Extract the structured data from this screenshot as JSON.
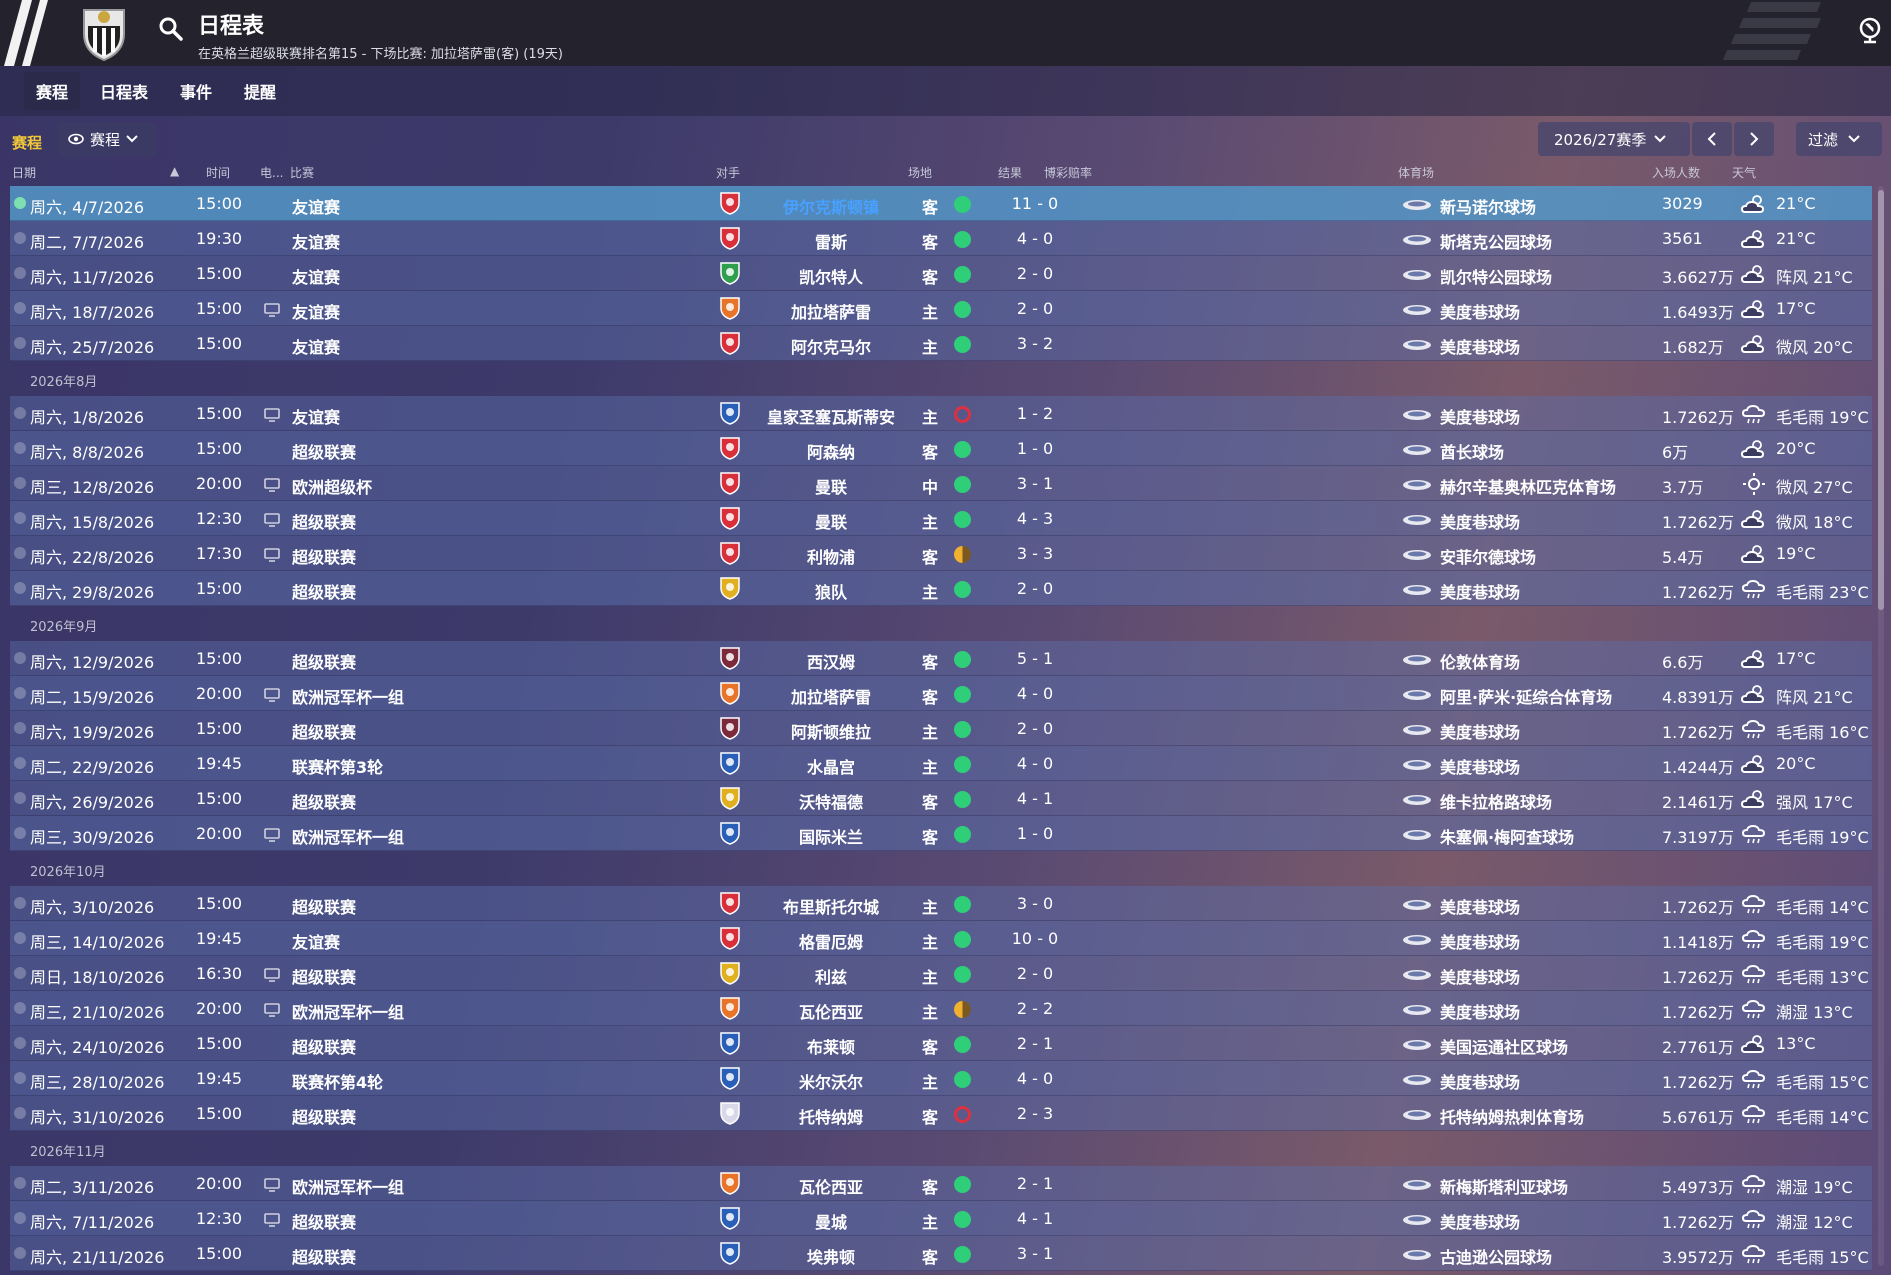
{
  "header": {
    "title": "日程表",
    "subtitle": "在英格兰超级联赛排名第15 - 下场比赛: 加拉塔萨雷(客) (19天)"
  },
  "tabs": [
    {
      "label": "赛程",
      "active": true
    },
    {
      "label": "日程表",
      "active": false
    },
    {
      "label": "事件",
      "active": false
    },
    {
      "label": "提醒",
      "active": false
    }
  ],
  "filters": {
    "label": "赛程",
    "view": "赛程",
    "season": "2026/27赛季",
    "filter_button": "过滤"
  },
  "columns": {
    "date": "日期",
    "time": "时间",
    "tv": "电...",
    "competition": "比赛",
    "opponent": "对手",
    "venue": "场地",
    "result": "结果",
    "odds": "博彩赔率",
    "stadium": "体育场",
    "attendance": "入场人数",
    "weather": "天气"
  },
  "colors": {
    "win": "#2fcf7a",
    "draw": "#f0b030",
    "loss": "#e03040",
    "selected_row": "#5496c8",
    "accent_yellow": "#f0c63a"
  },
  "rows": [
    {
      "type": "match",
      "date": "周六, 4/7/2026",
      "time": "15:00",
      "tv": false,
      "comp": "友谊赛",
      "opp": "伊尔克斯顿镇",
      "badge": "red",
      "venue": "客",
      "result": "win",
      "score": "11 - 0",
      "stadium": "新马诺尔球场",
      "att": "3029",
      "wx_icon": "cloud-sun-icon",
      "wx": "21°C",
      "selected": true
    },
    {
      "type": "match",
      "date": "周二, 7/7/2026",
      "time": "19:30",
      "tv": false,
      "comp": "友谊赛",
      "opp": "雷斯",
      "badge": "red",
      "venue": "客",
      "result": "win",
      "score": "4 - 0",
      "stadium": "斯塔克公园球场",
      "att": "3561",
      "wx_icon": "cloud-sun-icon",
      "wx": "21°C"
    },
    {
      "type": "match",
      "date": "周六, 11/7/2026",
      "time": "15:00",
      "tv": false,
      "comp": "友谊赛",
      "opp": "凯尔特人",
      "badge": "green",
      "venue": "客",
      "result": "win",
      "score": "2 - 0",
      "stadium": "凯尔特公园球场",
      "att": "3.6627万",
      "wx_icon": "cloud-sun-icon",
      "wx": "阵风 21°C"
    },
    {
      "type": "match",
      "date": "周六, 18/7/2026",
      "time": "15:00",
      "tv": true,
      "comp": "友谊赛",
      "opp": "加拉塔萨雷",
      "badge": "orange",
      "venue": "主",
      "result": "win",
      "score": "2 - 0",
      "stadium": "美度巷球场",
      "att": "1.6493万",
      "wx_icon": "cloud-sun-icon",
      "wx": "17°C"
    },
    {
      "type": "match",
      "date": "周六, 25/7/2026",
      "time": "15:00",
      "tv": false,
      "comp": "友谊赛",
      "opp": "阿尔克马尔",
      "badge": "red",
      "venue": "主",
      "result": "win",
      "score": "3 - 2",
      "stadium": "美度巷球场",
      "att": "1.682万",
      "wx_icon": "cloud-sun-icon",
      "wx": "微风 20°C"
    },
    {
      "type": "month",
      "label": "2026年8月"
    },
    {
      "type": "match",
      "date": "周六, 1/8/2026",
      "time": "15:00",
      "tv": true,
      "comp": "友谊赛",
      "opp": "皇家圣塞瓦斯蒂安",
      "badge": "blue",
      "venue": "主",
      "result": "loss",
      "score": "1 - 2",
      "stadium": "美度巷球场",
      "att": "1.7262万",
      "wx_icon": "rain-icon",
      "wx": "毛毛雨 19°C"
    },
    {
      "type": "match",
      "date": "周六, 8/8/2026",
      "time": "15:00",
      "tv": false,
      "comp": "超级联赛",
      "opp": "阿森纳",
      "badge": "red",
      "venue": "客",
      "result": "win",
      "score": "1 - 0",
      "stadium": "酋长球场",
      "att": "6万",
      "wx_icon": "cloud-sun-icon",
      "wx": "20°C"
    },
    {
      "type": "match",
      "date": "周三, 12/8/2026",
      "time": "20:00",
      "tv": true,
      "comp": "欧洲超级杯",
      "opp": "曼联",
      "badge": "red",
      "venue": "中",
      "result": "win",
      "score": "3 - 1",
      "stadium": "赫尔辛基奥林匹克体育场",
      "att": "3.7万",
      "wx_icon": "sun-icon",
      "wx": "微风 27°C"
    },
    {
      "type": "match",
      "date": "周六, 15/8/2026",
      "time": "12:30",
      "tv": true,
      "comp": "超级联赛",
      "opp": "曼联",
      "badge": "red",
      "venue": "主",
      "result": "win",
      "score": "4 - 3",
      "stadium": "美度巷球场",
      "att": "1.7262万",
      "wx_icon": "cloud-sun-icon",
      "wx": "微风 18°C"
    },
    {
      "type": "match",
      "date": "周六, 22/8/2026",
      "time": "17:30",
      "tv": true,
      "comp": "超级联赛",
      "opp": "利物浦",
      "badge": "red",
      "venue": "客",
      "result": "draw",
      "score": "3 - 3",
      "stadium": "安菲尔德球场",
      "att": "5.4万",
      "wx_icon": "cloud-sun-icon",
      "wx": "19°C"
    },
    {
      "type": "match",
      "date": "周六, 29/8/2026",
      "time": "15:00",
      "tv": false,
      "comp": "超级联赛",
      "opp": "狼队",
      "badge": "gold",
      "venue": "主",
      "result": "win",
      "score": "2 - 0",
      "stadium": "美度巷球场",
      "att": "1.7262万",
      "wx_icon": "rain-icon",
      "wx": "毛毛雨 23°C"
    },
    {
      "type": "month",
      "label": "2026年9月"
    },
    {
      "type": "match",
      "date": "周六, 12/9/2026",
      "time": "15:00",
      "tv": false,
      "comp": "超级联赛",
      "opp": "西汉姆",
      "badge": "maroon",
      "venue": "客",
      "result": "win",
      "score": "5 - 1",
      "stadium": "伦敦体育场",
      "att": "6.6万",
      "wx_icon": "cloud-sun-icon",
      "wx": "17°C"
    },
    {
      "type": "match",
      "date": "周二, 15/9/2026",
      "time": "20:00",
      "tv": true,
      "comp": "欧洲冠军杯一组",
      "opp": "加拉塔萨雷",
      "badge": "orange",
      "venue": "客",
      "result": "win",
      "score": "4 - 0",
      "stadium": "阿里·萨米·延综合体育场",
      "att": "4.8391万",
      "wx_icon": "cloud-sun-icon",
      "wx": "阵风 21°C"
    },
    {
      "type": "match",
      "date": "周六, 19/9/2026",
      "time": "15:00",
      "tv": false,
      "comp": "超级联赛",
      "opp": "阿斯顿维拉",
      "badge": "maroon",
      "venue": "主",
      "result": "win",
      "score": "2 - 0",
      "stadium": "美度巷球场",
      "att": "1.7262万",
      "wx_icon": "rain-icon",
      "wx": "毛毛雨 16°C"
    },
    {
      "type": "match",
      "date": "周二, 22/9/2026",
      "time": "19:45",
      "tv": false,
      "comp": "联赛杯第3轮",
      "opp": "水晶宫",
      "badge": "blue",
      "venue": "主",
      "result": "win",
      "score": "4 - 0",
      "stadium": "美度巷球场",
      "att": "1.4244万",
      "wx_icon": "cloud-sun-icon",
      "wx": "20°C"
    },
    {
      "type": "match",
      "date": "周六, 26/9/2026",
      "time": "15:00",
      "tv": false,
      "comp": "超级联赛",
      "opp": "沃特福德",
      "badge": "gold",
      "venue": "客",
      "result": "win",
      "score": "4 - 1",
      "stadium": "维卡拉格路球场",
      "att": "2.1461万",
      "wx_icon": "cloud-sun-icon",
      "wx": "强风 17°C"
    },
    {
      "type": "match",
      "date": "周三, 30/9/2026",
      "time": "20:00",
      "tv": true,
      "comp": "欧洲冠军杯一组",
      "opp": "国际米兰",
      "badge": "blue",
      "venue": "客",
      "result": "win",
      "score": "1 - 0",
      "stadium": "朱塞佩·梅阿查球场",
      "att": "7.3197万",
      "wx_icon": "rain-icon",
      "wx": "毛毛雨 19°C"
    },
    {
      "type": "month",
      "label": "2026年10月"
    },
    {
      "type": "match",
      "date": "周六, 3/10/2026",
      "time": "15:00",
      "tv": false,
      "comp": "超级联赛",
      "opp": "布里斯托尔城",
      "badge": "red",
      "venue": "主",
      "result": "win",
      "score": "3 - 0",
      "stadium": "美度巷球场",
      "att": "1.7262万",
      "wx_icon": "rain-icon",
      "wx": "毛毛雨 14°C"
    },
    {
      "type": "match",
      "date": "周三, 14/10/2026",
      "time": "19:45",
      "tv": false,
      "comp": "友谊赛",
      "opp": "格雷厄姆",
      "badge": "red",
      "venue": "主",
      "result": "win",
      "score": "10 - 0",
      "stadium": "美度巷球场",
      "att": "1.1418万",
      "wx_icon": "rain-icon",
      "wx": "毛毛雨 19°C"
    },
    {
      "type": "match",
      "date": "周日, 18/10/2026",
      "time": "16:30",
      "tv": true,
      "comp": "超级联赛",
      "opp": "利兹",
      "badge": "gold",
      "venue": "主",
      "result": "win",
      "score": "2 - 0",
      "stadium": "美度巷球场",
      "att": "1.7262万",
      "wx_icon": "rain-icon",
      "wx": "毛毛雨 13°C"
    },
    {
      "type": "match",
      "date": "周三, 21/10/2026",
      "time": "20:00",
      "tv": true,
      "comp": "欧洲冠军杯一组",
      "opp": "瓦伦西亚",
      "badge": "orange",
      "venue": "主",
      "result": "draw",
      "score": "2 - 2",
      "stadium": "美度巷球场",
      "att": "1.7262万",
      "wx_icon": "rain-icon",
      "wx": "潮湿 13°C"
    },
    {
      "type": "match",
      "date": "周六, 24/10/2026",
      "time": "15:00",
      "tv": false,
      "comp": "超级联赛",
      "opp": "布莱顿",
      "badge": "blue",
      "venue": "客",
      "result": "win",
      "score": "2 - 1",
      "stadium": "美国运通社区球场",
      "att": "2.7761万",
      "wx_icon": "cloud-sun-icon",
      "wx": "13°C"
    },
    {
      "type": "match",
      "date": "周三, 28/10/2026",
      "time": "19:45",
      "tv": false,
      "comp": "联赛杯第4轮",
      "opp": "米尔沃尔",
      "badge": "blue",
      "venue": "主",
      "result": "win",
      "score": "4 - 0",
      "stadium": "美度巷球场",
      "att": "1.7262万",
      "wx_icon": "rain-icon",
      "wx": "毛毛雨 15°C"
    },
    {
      "type": "match",
      "date": "周六, 31/10/2026",
      "time": "15:00",
      "tv": false,
      "comp": "超级联赛",
      "opp": "托特纳姆",
      "badge": "white",
      "venue": "客",
      "result": "loss",
      "score": "2 - 3",
      "stadium": "托特纳姆热刺体育场",
      "att": "5.6761万",
      "wx_icon": "rain-icon",
      "wx": "毛毛雨 14°C"
    },
    {
      "type": "month",
      "label": "2026年11月"
    },
    {
      "type": "match",
      "date": "周二, 3/11/2026",
      "time": "20:00",
      "tv": true,
      "comp": "欧洲冠军杯一组",
      "opp": "瓦伦西亚",
      "badge": "orange",
      "venue": "客",
      "result": "win",
      "score": "2 - 1",
      "stadium": "新梅斯塔利亚球场",
      "att": "5.4973万",
      "wx_icon": "rain-icon",
      "wx": "潮湿 19°C"
    },
    {
      "type": "match",
      "date": "周六, 7/11/2026",
      "time": "12:30",
      "tv": true,
      "comp": "超级联赛",
      "opp": "曼城",
      "badge": "blue",
      "venue": "主",
      "result": "win",
      "score": "4 - 1",
      "stadium": "美度巷球场",
      "att": "1.7262万",
      "wx_icon": "rain-icon",
      "wx": "潮湿 12°C"
    },
    {
      "type": "match",
      "date": "周六, 21/11/2026",
      "time": "15:00",
      "tv": false,
      "comp": "超级联赛",
      "opp": "埃弗顿",
      "badge": "blue",
      "venue": "客",
      "result": "win",
      "score": "3 - 1",
      "stadium": "古迪逊公园球场",
      "att": "3.9572万",
      "wx_icon": "rain-icon",
      "wx": "毛毛雨 15°C"
    }
  ]
}
